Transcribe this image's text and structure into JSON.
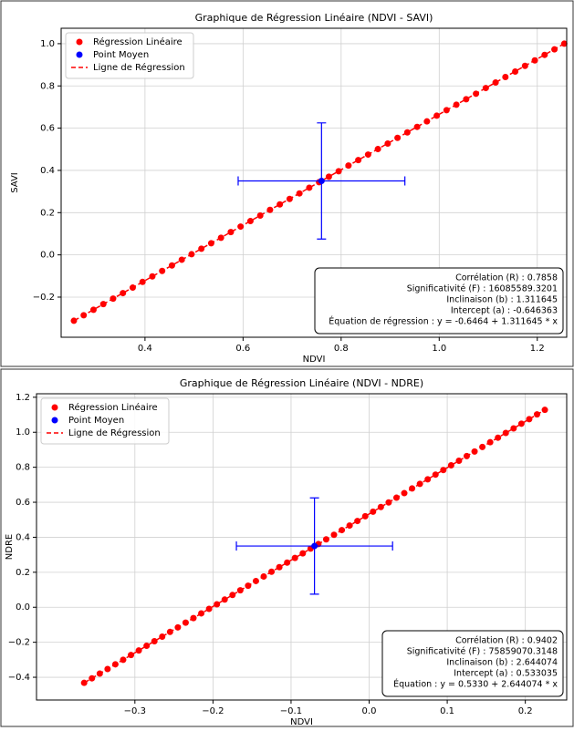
{
  "chart_data": [
    {
      "type": "scatter",
      "title": "Graphique de Régression Linéaire (NDVI - SAVI)",
      "x_label": "NDVI",
      "y_label": "SAVI",
      "xlim": [
        0.229,
        1.26
      ],
      "ylim": [
        -0.39,
        1.073
      ],
      "xticks": [
        0.4,
        0.6,
        0.8,
        {
          "value": 1,
          "label": "1.0"
        },
        1.2
      ],
      "yticks": [
        {
          "value": -0.2,
          "label": "−0.2"
        },
        {
          "value": 0,
          "label": "0.0"
        },
        0.2,
        0.4,
        0.6,
        0.8,
        {
          "value": 1,
          "label": "1.0"
        }
      ],
      "grid": true,
      "legend": "upper left",
      "stats_position": "lower right",
      "series": [
        {
          "name": "Régression Linéaire",
          "color": "#ff0000",
          "x": [
            0.255,
            0.275,
            0.295,
            0.315,
            0.335,
            0.355,
            0.375,
            0.395,
            0.415,
            0.435,
            0.455,
            0.475,
            0.495,
            0.515,
            0.535,
            0.555,
            0.575,
            0.595,
            0.615,
            0.635,
            0.655,
            0.675,
            0.695,
            0.715,
            0.735,
            0.755,
            0.775,
            0.795,
            0.815,
            0.835,
            0.855,
            0.875,
            0.895,
            0.915,
            0.935,
            0.955,
            0.975,
            0.995,
            1.015,
            1.035,
            1.055,
            1.075,
            1.095,
            1.115,
            1.135,
            1.155,
            1.175,
            1.195,
            1.215,
            1.235,
            1.255
          ],
          "values": [
            -0.312,
            -0.286,
            -0.26,
            -0.233,
            -0.207,
            -0.181,
            -0.155,
            -0.128,
            -0.102,
            -0.076,
            -0.05,
            -0.023,
            0.003,
            0.029,
            0.055,
            0.081,
            0.108,
            0.134,
            0.16,
            0.186,
            0.213,
            0.239,
            0.265,
            0.291,
            0.318,
            0.344,
            0.37,
            0.396,
            0.423,
            0.449,
            0.475,
            0.501,
            0.527,
            0.554,
            0.58,
            0.606,
            0.632,
            0.659,
            0.685,
            0.711,
            0.737,
            0.763,
            0.79,
            0.816,
            0.842,
            0.868,
            0.895,
            0.921,
            0.947,
            0.973,
            1.0
          ]
        },
        {
          "name": "Point Moyen",
          "color": "#0000ff",
          "x": [
            0.76
          ],
          "values": [
            0.35
          ],
          "xerr": [
            0.17
          ],
          "yerr": [
            0.275
          ]
        },
        {
          "name": "Ligne de Régression",
          "color": "#ff0000",
          "style": "dashed",
          "x": [
            0.255,
            1.255
          ],
          "values": [
            -0.312,
            1.0
          ]
        }
      ],
      "stats": [
        "Corrélation (R) : 0.7858",
        "Significativité (F) : 16085589.3201",
        "Inclinaison (b) : 1.311645",
        "Intercept (a) : -0.646363",
        "Équation de régression : y = -0.6464 + 1.311645 * x"
      ]
    },
    {
      "type": "scatter",
      "title": "Graphique de Régression Linéaire (NDVI - NDRE)",
      "x_label": "NDVI",
      "y_label": "NDRE",
      "xlim": [
        -0.426,
        0.253
      ],
      "ylim": [
        -0.53,
        1.22
      ],
      "xticks": [
        {
          "value": -0.3,
          "label": "−0.3"
        },
        {
          "value": -0.2,
          "label": "−0.2"
        },
        {
          "value": -0.1,
          "label": "−0.1"
        },
        {
          "value": 0,
          "label": "0.0"
        },
        0.1,
        0.2
      ],
      "yticks": [
        {
          "value": -0.4,
          "label": "−0.4"
        },
        {
          "value": -0.2,
          "label": "−0.2"
        },
        {
          "value": 0,
          "label": "0.0"
        },
        0.2,
        0.4,
        0.6,
        0.8,
        {
          "value": 1,
          "label": "1.0"
        },
        1.2
      ],
      "grid": true,
      "legend": "upper left",
      "stats_position": "lower right",
      "series": [
        {
          "name": "Régression Linéaire",
          "color": "#ff0000",
          "x": [
            -0.365,
            -0.355,
            -0.345,
            -0.335,
            -0.325,
            -0.315,
            -0.305,
            -0.295,
            -0.285,
            -0.275,
            -0.265,
            -0.255,
            -0.245,
            -0.235,
            -0.225,
            -0.215,
            -0.205,
            -0.195,
            -0.185,
            -0.175,
            -0.165,
            -0.155,
            -0.145,
            -0.135,
            -0.125,
            -0.115,
            -0.105,
            -0.095,
            -0.085,
            -0.075,
            -0.065,
            -0.055,
            -0.045,
            -0.035,
            -0.025,
            -0.015,
            -0.005,
            0.005,
            0.015,
            0.025,
            0.035,
            0.045,
            0.055,
            0.065,
            0.075,
            0.085,
            0.095,
            0.105,
            0.115,
            0.125,
            0.135,
            0.145,
            0.155,
            0.165,
            0.175,
            0.185,
            0.195,
            0.205,
            0.215,
            0.225
          ],
          "values": [
            -0.432,
            -0.406,
            -0.379,
            -0.353,
            -0.326,
            -0.3,
            -0.273,
            -0.247,
            -0.22,
            -0.194,
            -0.168,
            -0.141,
            -0.115,
            -0.088,
            -0.062,
            -0.035,
            -0.009,
            0.017,
            0.044,
            0.07,
            0.097,
            0.123,
            0.15,
            0.176,
            0.203,
            0.229,
            0.255,
            0.282,
            0.308,
            0.335,
            0.361,
            0.388,
            0.414,
            0.441,
            0.467,
            0.493,
            0.52,
            0.546,
            0.573,
            0.599,
            0.626,
            0.652,
            0.679,
            0.705,
            0.731,
            0.758,
            0.784,
            0.811,
            0.837,
            0.864,
            0.89,
            0.916,
            0.943,
            0.969,
            0.996,
            1.022,
            1.049,
            1.075,
            1.102,
            1.128
          ]
        },
        {
          "name": "Point Moyen",
          "color": "#0000ff",
          "x": [
            -0.07
          ],
          "values": [
            0.35
          ],
          "xerr": [
            0.1
          ],
          "yerr": [
            0.275
          ]
        },
        {
          "name": "Ligne de Régression",
          "color": "#ff0000",
          "style": "dashed",
          "x": [
            -0.365,
            0.225
          ],
          "values": [
            -0.432,
            1.128
          ]
        }
      ],
      "stats": [
        "Corrélation (R) : 0.9402",
        "Significativité (F) : 75859070.3148",
        "Inclinaison (b) : 2.644074",
        "Intercept (a) : 0.533035",
        "Équation : y = 0.5330 + 2.644074 * x"
      ]
    }
  ]
}
